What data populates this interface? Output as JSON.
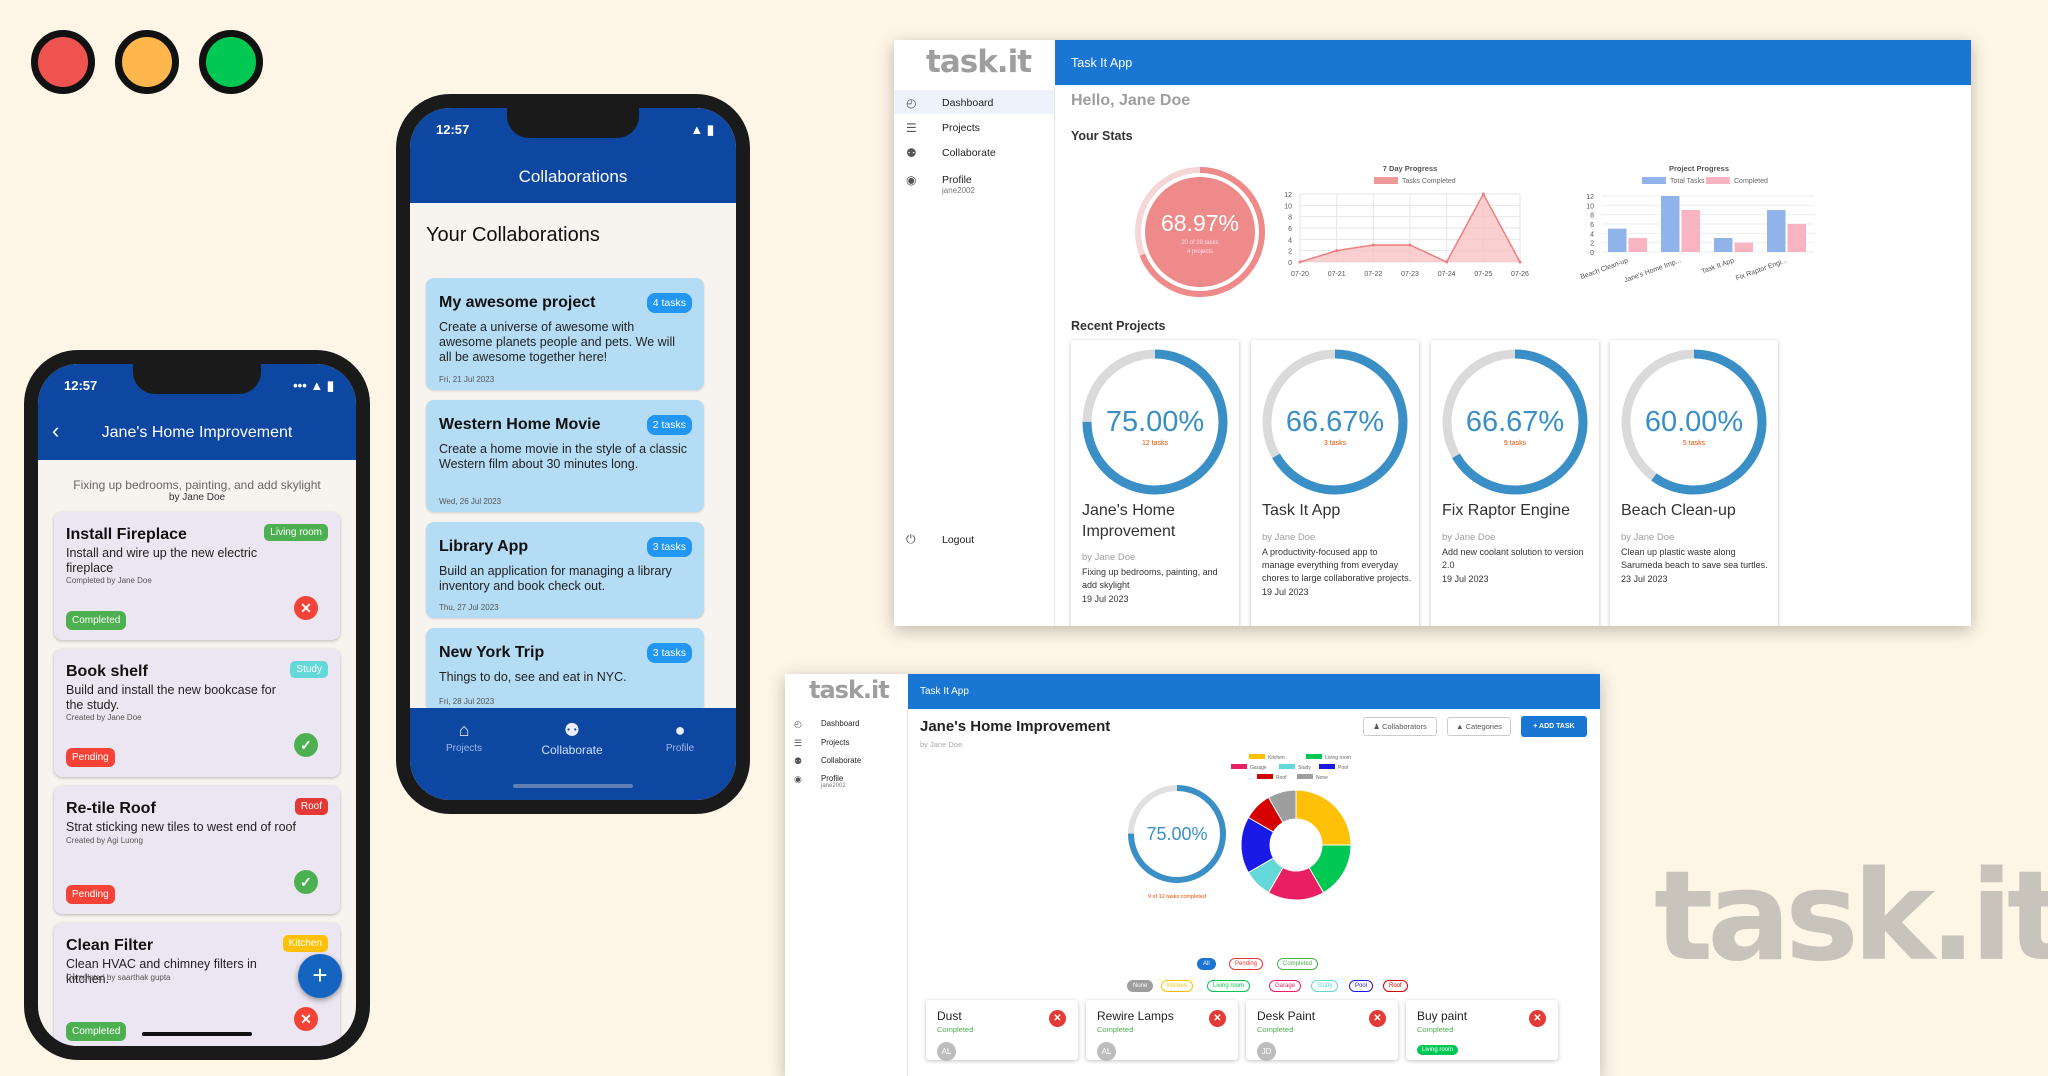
{
  "window_controls": {
    "close_color": "#ef5350",
    "minimize_color": "#ffb74d",
    "maximize_color": "#00c853"
  },
  "phone1": {
    "time": "12:57",
    "title": "Jane's Home Improvement",
    "description": "Fixing up bedrooms, painting, and add skylight",
    "by": "by Jane Doe",
    "tasks": [
      {
        "title": "Install Fireplace",
        "tag": "Living room",
        "tag_color": "#4caf50",
        "desc": "Install and wire up the new electric fireplace",
        "by": "Completed by Jane Doe",
        "status": "Completed",
        "status_color": "#4caf50",
        "action": "remove"
      },
      {
        "title": "Book shelf",
        "tag": "Study",
        "tag_color": "#64d8d8",
        "desc": "Build and install the new bookcase for the study.",
        "by": "Created by Jane Doe",
        "status": "Pending",
        "status_color": "#f44336",
        "action": "complete"
      },
      {
        "title": "Re-tile Roof",
        "tag": "Roof",
        "tag_color": "#e53935",
        "desc": "Strat sticking new tiles to west end of roof",
        "by": "Created by Agi Luong",
        "status": "Pending",
        "status_color": "#f44336",
        "action": "complete"
      },
      {
        "title": "Clean Filter",
        "tag": "Kitchen",
        "tag_color": "#ffc107",
        "desc": "Clean HVAC and chimney filters in kitchen.",
        "by": "Completed by saarthak gupta",
        "status": "Completed",
        "status_color": "#4caf50",
        "action": "remove"
      }
    ],
    "fab": "+"
  },
  "phone2": {
    "time": "12:57",
    "title": "Collaborations",
    "heading": "Your Collaborations",
    "collaborations": [
      {
        "title": "My awesome project",
        "count": "4 tasks",
        "desc": "Create a universe of awesome with awesome planets people and pets. We will all be awesome together here!",
        "date": "Fri, 21 Jul 2023"
      },
      {
        "title": "Western Home Movie",
        "count": "2 tasks",
        "desc": "Create a home movie in the style of a classic Western film about 30 minutes long.",
        "date": "Wed, 26 Jul 2023"
      },
      {
        "title": "Library App",
        "count": "3 tasks",
        "desc": "Build an application for managing a library inventory and book check out.",
        "date": "Thu, 27 Jul 2023"
      },
      {
        "title": "New York Trip",
        "count": "3 tasks",
        "desc": "Things to do, see and eat in NYC.",
        "date": "Fri, 28 Jul 2023"
      }
    ],
    "nav": [
      {
        "label": "Projects",
        "icon": "home-icon"
      },
      {
        "label": "Collaborate",
        "icon": "people-icon"
      },
      {
        "label": "Profile",
        "icon": "account-icon"
      }
    ]
  },
  "desktop1": {
    "logo": "task.it",
    "appbar_title": "Task It App",
    "greeting": "Hello, Jane Doe",
    "sidebar": [
      {
        "label": "Dashboard",
        "icon": "speedometer-icon"
      },
      {
        "label": "Projects",
        "icon": "list-icon"
      },
      {
        "label": "Collaborate",
        "icon": "people-icon"
      },
      {
        "label": "Profile",
        "sub": "jane2002",
        "icon": "account-icon"
      }
    ],
    "logout": "Logout",
    "stats_heading": "Your Stats",
    "stats_ring": {
      "percent": "68.97%",
      "line1": "20 of 29 tasks",
      "line2": "4 projects",
      "fraction": 0.6897
    },
    "recent_heading": "Recent Projects",
    "projects": [
      {
        "percent": "75.00%",
        "tasks": "12 tasks",
        "name": "Jane's Home Improvement",
        "by": "by Jane Doe",
        "desc": "Fixing up bedrooms, painting, and add skylight",
        "date": "19 Jul 2023",
        "fraction": 0.75
      },
      {
        "percent": "66.67%",
        "tasks": "3 tasks",
        "name": "Task It App",
        "by": "by Jane Doe",
        "desc": "A productivity-focused app to manage everything from everyday chores to large collaborative projects.",
        "date": "19 Jul 2023",
        "fraction": 0.6667
      },
      {
        "percent": "66.67%",
        "tasks": "9 tasks",
        "name": "Fix Raptor Engine",
        "by": "by Jane Doe",
        "desc": "Add new coolant solution to version 2.0",
        "date": "19 Jul 2023",
        "fraction": 0.6667
      },
      {
        "percent": "60.00%",
        "tasks": "5 tasks",
        "name": "Beach Clean-up",
        "by": "by Jane Doe",
        "desc": "Clean up plastic waste along Sarumeda beach to save sea turtles.",
        "date": "23 Jul 2023",
        "fraction": 0.6
      }
    ]
  },
  "desktop2": {
    "logo": "task.it",
    "appbar_title": "Task It App",
    "sidebar": [
      {
        "label": "Dashboard",
        "icon": "speedometer-icon"
      },
      {
        "label": "Projects",
        "icon": "list-icon"
      },
      {
        "label": "Collaborate",
        "icon": "people-icon"
      },
      {
        "label": "Profile",
        "sub": "jane2002",
        "icon": "account-icon"
      }
    ],
    "project_title": "Jane's Home Improvement",
    "by": "by Jane Doe",
    "buttons": {
      "collaborators": "Collaborators",
      "categories": "Categories",
      "add_task": "+ ADD TASK"
    },
    "ring": {
      "percent": "75.00%",
      "caption": "9 of 12 tasks completed",
      "fraction": 0.75
    },
    "status_filters": [
      {
        "label": "All",
        "color": "#1976d2"
      },
      {
        "label": "Pending",
        "color": "#e53935"
      },
      {
        "label": "Completed",
        "color": "#4caf50"
      }
    ],
    "category_filters": [
      {
        "label": "None",
        "color": "#9e9e9e"
      },
      {
        "label": "Kitchen",
        "color": "#ffc107"
      },
      {
        "label": "Living room",
        "color": "#00c853"
      },
      {
        "label": "Garage",
        "color": "#e91e63"
      },
      {
        "label": "Study",
        "color": "#64d8d8"
      },
      {
        "label": "Pool",
        "color": "#1a1ae6"
      },
      {
        "label": "Roof",
        "color": "#d50000"
      }
    ],
    "tasks": [
      {
        "title": "Dust",
        "status": "Completed",
        "avatar": "AL"
      },
      {
        "title": "Rewire Lamps",
        "status": "Completed",
        "avatar": "AL"
      },
      {
        "title": "Desk Paint",
        "status": "Completed",
        "avatar": "JD"
      },
      {
        "title": "Buy paint",
        "status": "Completed",
        "tag": "Living room"
      }
    ]
  },
  "chart_data": [
    {
      "type": "area",
      "title": "7 Day Progress",
      "legend": "top",
      "categories": [
        "07-20",
        "07-21",
        "07-22",
        "07-23",
        "07-24",
        "07-25",
        "07-26"
      ],
      "series": [
        {
          "name": "Tasks Completed",
          "values": [
            0,
            2,
            3,
            3,
            0,
            12,
            0
          ]
        }
      ],
      "ylim": [
        0,
        12
      ],
      "yticks": [
        "0",
        "2",
        "4",
        "6",
        "8",
        "10",
        "12"
      ],
      "color": "#ef9a9a"
    },
    {
      "type": "bar",
      "title": "Project Progress",
      "legend": "top",
      "categories": [
        "Beach Clean-up",
        "Jane's Home Imp...",
        "Task It App",
        "Fix Raptor Engi..."
      ],
      "series": [
        {
          "name": "Total Tasks",
          "values": [
            5,
            12,
            3,
            9
          ],
          "color": "#90b4ea"
        },
        {
          "name": "Completed",
          "values": [
            3,
            9,
            2,
            6
          ],
          "color": "#f8b4c0"
        }
      ],
      "ylim": [
        0,
        12
      ],
      "yticks": [
        "0",
        "2",
        "4",
        "6",
        "8",
        "10",
        "12"
      ]
    },
    {
      "type": "pie",
      "donut": true,
      "legend": "top",
      "categories": [
        "Kitchen",
        "Living room",
        "Garage",
        "Study",
        "Pool",
        "Roof",
        "None"
      ],
      "values": [
        3,
        2,
        2,
        1,
        2,
        1,
        1
      ],
      "colors": [
        "#ffc107",
        "#00c853",
        "#e91e63",
        "#64d8d8",
        "#1a1ae6",
        "#d50000",
        "#9e9e9e"
      ]
    }
  ],
  "watermark": "task.it"
}
